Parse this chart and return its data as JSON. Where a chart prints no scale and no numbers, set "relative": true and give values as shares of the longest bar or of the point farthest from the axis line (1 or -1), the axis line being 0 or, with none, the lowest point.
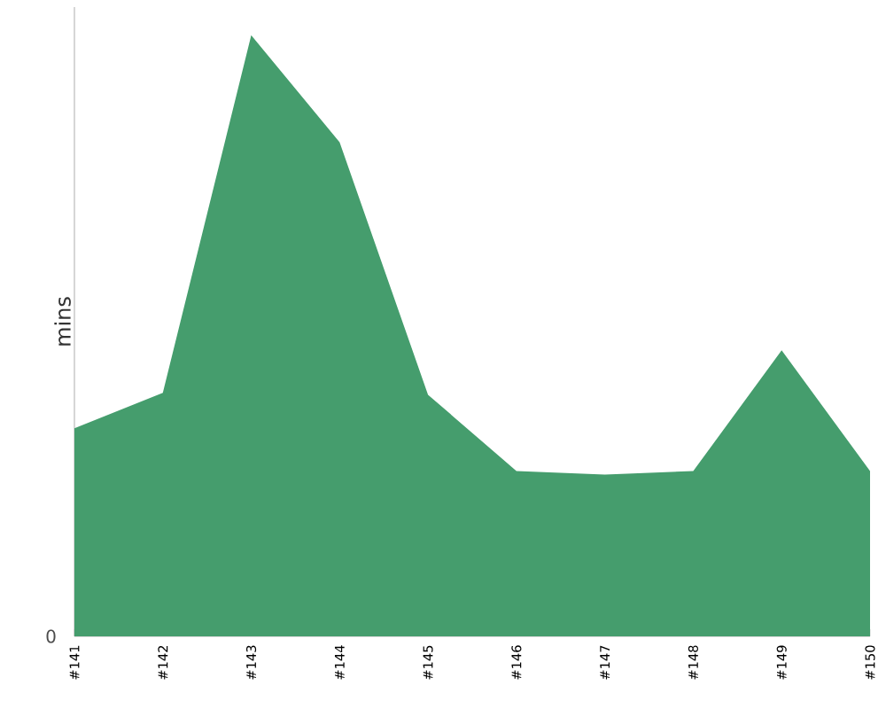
{
  "chart_data": {
    "type": "area",
    "relative": true,
    "ylabel": "mins",
    "color": "#459d6d",
    "categories": [
      "#141",
      "#142",
      "#143",
      "#144",
      "#145",
      "#146",
      "#147",
      "#148",
      "#149",
      "#150"
    ],
    "values": [
      0.346,
      0.405,
      1,
      0.822,
      0.402,
      0.275,
      0.269,
      0.275,
      0.476,
      0.275
    ],
    "annotations": [
      "0"
    ]
  }
}
